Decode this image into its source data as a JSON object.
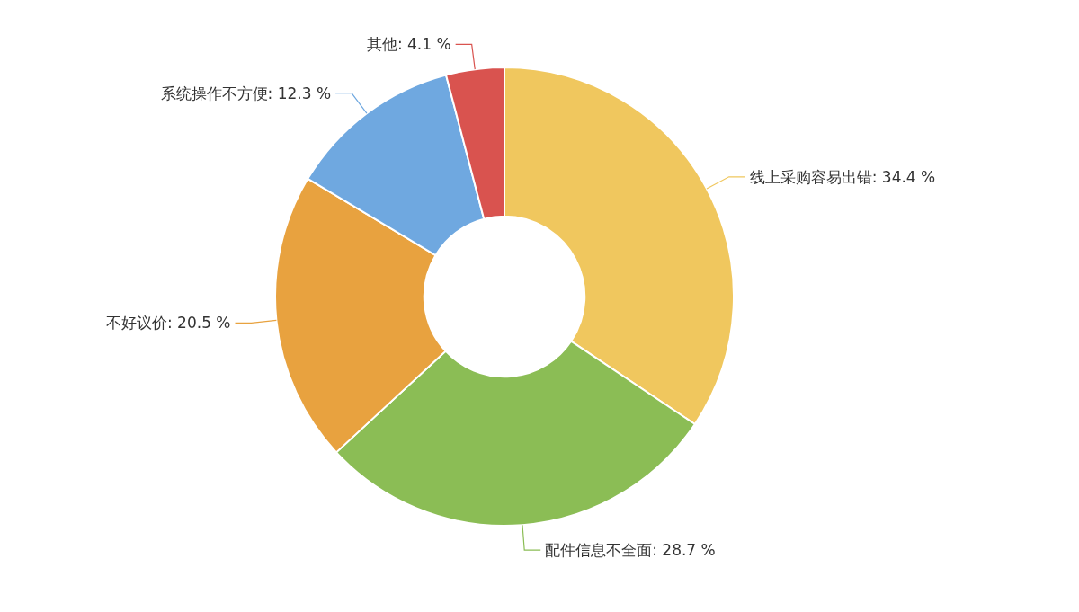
{
  "chart_data": {
    "type": "donut",
    "categories": [
      "线上采购容易出错",
      "配件信息不全面",
      "不好议价",
      "系统操作不方便",
      "其他"
    ],
    "values": [
      34.4,
      28.7,
      20.5,
      12.3,
      4.1
    ],
    "value_labels": [
      "34.4 %",
      "28.7 %",
      "20.5 %",
      "12.3 %",
      "4.1 %"
    ],
    "colors": [
      "#f0c75e",
      "#8bbd55",
      "#e8a23f",
      "#6fa8e0",
      "#d9534f"
    ]
  }
}
